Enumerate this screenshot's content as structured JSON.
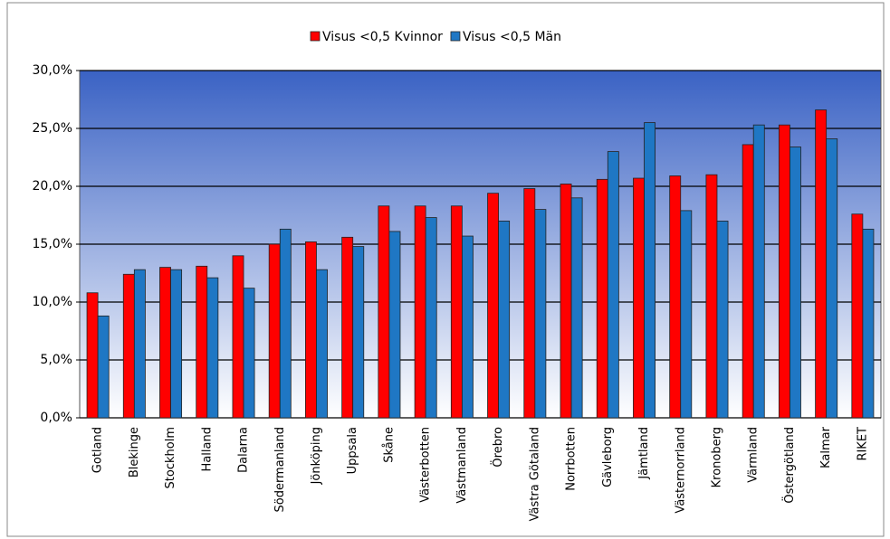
{
  "chart_data": {
    "type": "bar",
    "categories": [
      "Gotland",
      "Blekinge",
      "Stockholm",
      "Halland",
      "Dalarna",
      "Södermanland",
      "Jönköping",
      "Uppsala",
      "Skåne",
      "Västerbotten",
      "Västmanland",
      "Örebro",
      "Västra Götaland",
      "Norrbotten",
      "Gävleborg",
      "Jämtland",
      "Västernorrland",
      "Kronoberg",
      "Värmland",
      "Östergötland",
      "Kalmar",
      "RIKET"
    ],
    "series": [
      {
        "name": "Visus <0,5 Kvinnor",
        "color": "#ff0000",
        "values": [
          10.8,
          12.4,
          13.0,
          13.1,
          14.0,
          15.0,
          15.2,
          15.6,
          18.3,
          18.3,
          18.3,
          19.4,
          19.8,
          20.2,
          20.6,
          20.7,
          20.9,
          21.0,
          23.6,
          25.3,
          26.6,
          17.6
        ]
      },
      {
        "name": "Visus <0,5 Män",
        "color": "#1f77c4",
        "values": [
          8.8,
          12.8,
          12.8,
          12.1,
          11.2,
          16.3,
          12.8,
          14.8,
          16.1,
          17.3,
          15.7,
          17.0,
          18.0,
          19.0,
          23.0,
          25.5,
          17.9,
          17.0,
          25.3,
          23.4,
          24.1,
          16.3
        ]
      }
    ],
    "ylim": [
      0,
      30
    ],
    "yticks": [
      {
        "value": 0,
        "label": "0,0%"
      },
      {
        "value": 5,
        "label": "5,0%"
      },
      {
        "value": 10,
        "label": "10,0%"
      },
      {
        "value": 15,
        "label": "15,0%"
      },
      {
        "value": 20,
        "label": "20,0%"
      },
      {
        "value": 25,
        "label": "25,0%"
      },
      {
        "value": 30,
        "label": "30,0%"
      }
    ],
    "grid": true,
    "legend": "top"
  }
}
